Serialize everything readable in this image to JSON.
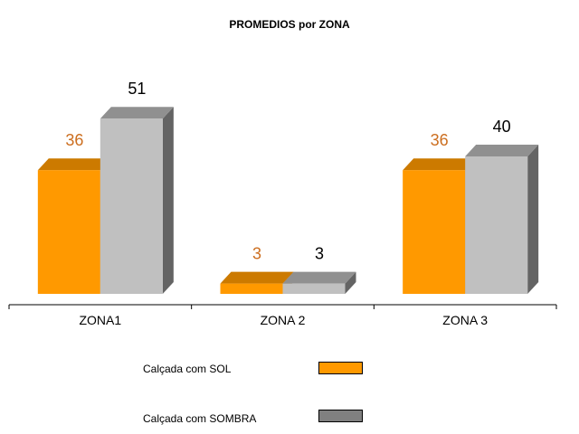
{
  "chart_data": {
    "type": "bar",
    "title": "PROMEDIOS por ZONA",
    "categories": [
      "ZONA1",
      "ZONA 2",
      "ZONA 3"
    ],
    "series": [
      {
        "name": "Calçada com SOL",
        "values": [
          36,
          3,
          36
        ],
        "color": "#FF9900",
        "label_color": "#CC6E1F"
      },
      {
        "name": "Calçada com SOMBRA",
        "values": [
          51,
          3,
          40
        ],
        "color": "#C0C0C0",
        "label_color": "#000000"
      }
    ],
    "legend_swatch_colors": [
      "#FF9900",
      "#808080"
    ],
    "ylim": [
      0,
      60
    ],
    "grid": false,
    "legend_position": "bottom",
    "projection": "3d"
  }
}
